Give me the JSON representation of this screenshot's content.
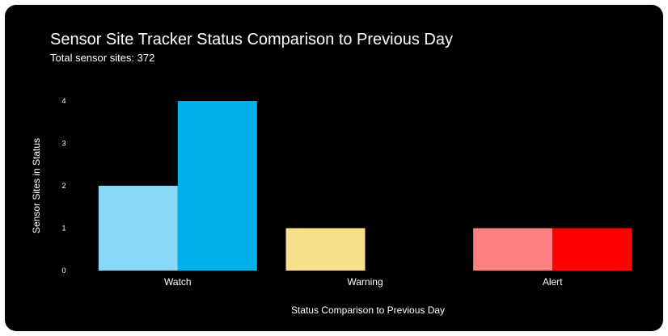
{
  "title": "Sensor Site Tracker Status Comparison to Previous Day",
  "subtitle": "Total sensor sites: 372",
  "chart_data": {
    "type": "bar",
    "title": "Sensor Site Tracker Status Comparison to Previous Day",
    "subtitle": "Total sensor sites: 372",
    "xlabel": "Status Comparison to Previous Day",
    "ylabel": "Sensor Sites in Status",
    "categories": [
      "Watch",
      "Warning",
      "Alert"
    ],
    "ylim": [
      0,
      4
    ],
    "yticks": [
      0,
      1,
      2,
      3,
      4
    ],
    "grid": false,
    "legend": "none",
    "series": [
      {
        "values": [
          2,
          1,
          1
        ],
        "colors": [
          "#87d8f7",
          "#fadf8b",
          "#ff8080"
        ]
      },
      {
        "values": [
          4,
          0,
          1
        ],
        "colors": [
          "#00b0eb",
          "#f5c518",
          "#ff0000"
        ]
      }
    ]
  }
}
